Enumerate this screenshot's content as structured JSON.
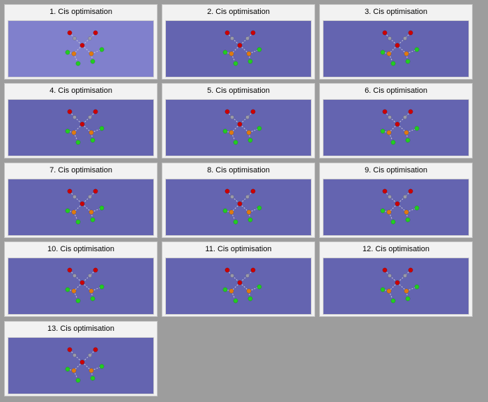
{
  "background_color": "#9d9d9d",
  "view_color": "#6464b0",
  "selected_view_color": "#8080cc",
  "atom_colors": {
    "oxygen": "#cc0000",
    "carbon": "#9a9aa8",
    "orange": "#e07a10",
    "green": "#22cc22"
  },
  "tiles": [
    {
      "title": "1.  Cis optimisation",
      "selected": true
    },
    {
      "title": "2.  Cis optimisation",
      "selected": false
    },
    {
      "title": "3.  Cis optimisation",
      "selected": false
    },
    {
      "title": "4.  Cis optimisation",
      "selected": false
    },
    {
      "title": "5.  Cis optimisation",
      "selected": false
    },
    {
      "title": "6.  Cis optimisation",
      "selected": false
    },
    {
      "title": "7.  Cis optimisation",
      "selected": false
    },
    {
      "title": "8.  Cis optimisation",
      "selected": false
    },
    {
      "title": "9.  Cis optimisation",
      "selected": false
    },
    {
      "title": "10.  Cis optimisation",
      "selected": false
    },
    {
      "title": "11.  Cis optimisation",
      "selected": false
    },
    {
      "title": "12.  Cis optimisation",
      "selected": false
    },
    {
      "title": "13.  Cis optimisation",
      "selected": false
    }
  ]
}
